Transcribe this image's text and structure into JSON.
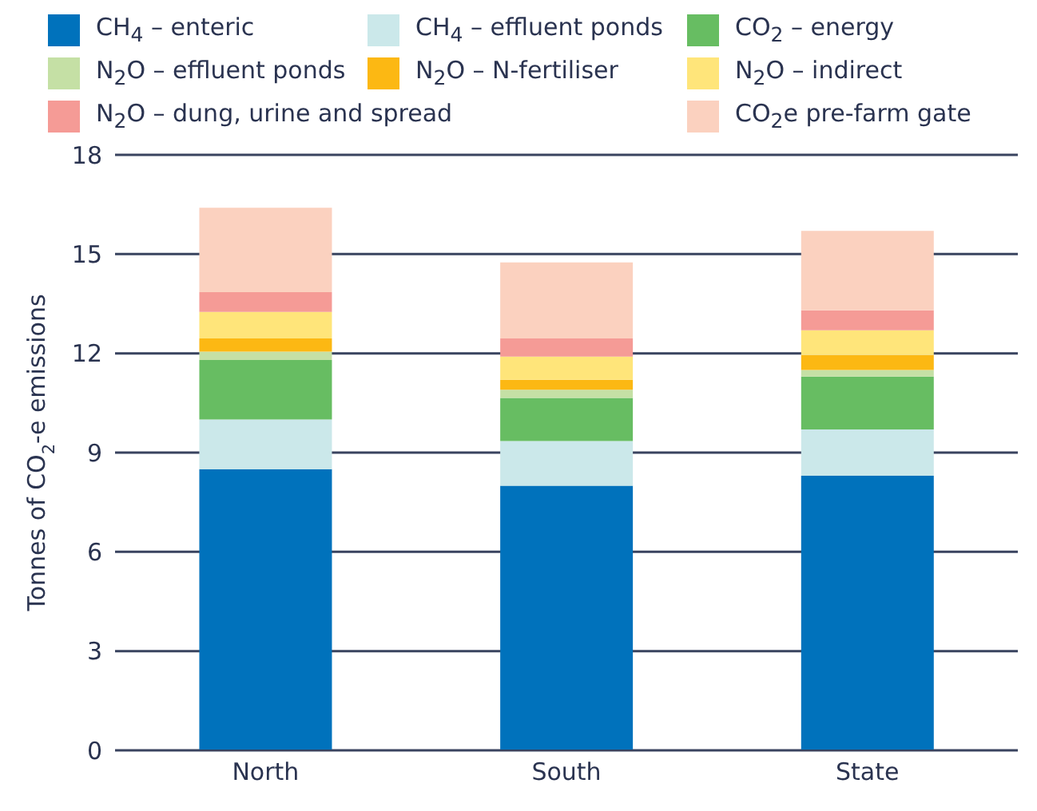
{
  "chart_data": {
    "type": "bar",
    "stacked": true,
    "ylabel": "Tonnes of CO$_{2}$-e emissions",
    "categories": [
      "North",
      "South",
      "State"
    ],
    "series": [
      {
        "name": "CH$_{4}$ – enteric",
        "color": "#0072bc",
        "values": [
          8.5,
          8.0,
          8.3
        ]
      },
      {
        "name": "CH$_{4}$ – effluent ponds",
        "color": "#cbe8ea",
        "values": [
          1.5,
          1.35,
          1.4
        ]
      },
      {
        "name": "CO$_{2}$ – energy",
        "color": "#67bd62",
        "values": [
          1.8,
          1.3,
          1.6
        ]
      },
      {
        "name": "N$_{2}$O – effluent ponds",
        "color": "#c5e0a5",
        "values": [
          0.25,
          0.25,
          0.2
        ]
      },
      {
        "name": "N$_{2}$O – N-fertiliser",
        "color": "#fcb813",
        "values": [
          0.4,
          0.3,
          0.45
        ]
      },
      {
        "name": "N$_{2}$O – indirect",
        "color": "#ffe57a",
        "values": [
          0.8,
          0.7,
          0.75
        ]
      },
      {
        "name": "N$_{2}$O – dung, urine and spread",
        "color": "#f59b96",
        "values": [
          0.6,
          0.55,
          0.6
        ]
      },
      {
        "name": "CO$_{2}$e pre-farm gate",
        "color": "#fbd1bf",
        "values": [
          2.55,
          2.3,
          2.4
        ]
      }
    ],
    "ylim": [
      0,
      18
    ],
    "yticks": [
      0,
      3,
      6,
      9,
      12,
      15,
      18
    ],
    "grid": "y",
    "legend": "top"
  }
}
